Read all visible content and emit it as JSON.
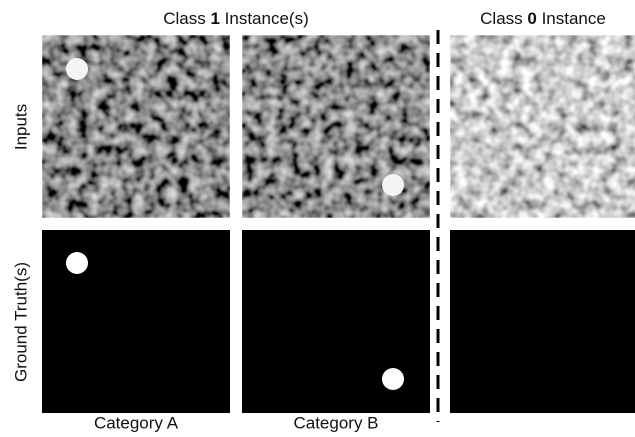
{
  "header": {
    "left": {
      "prefix": "Class ",
      "number": "1",
      "suffix": " Instance(s)"
    },
    "right": {
      "prefix": "Class ",
      "number": "0",
      "suffix": " Instance"
    }
  },
  "rows": [
    "Inputs",
    "Ground Truth(s)"
  ],
  "columns": [
    "Category A",
    "Category B"
  ]
}
